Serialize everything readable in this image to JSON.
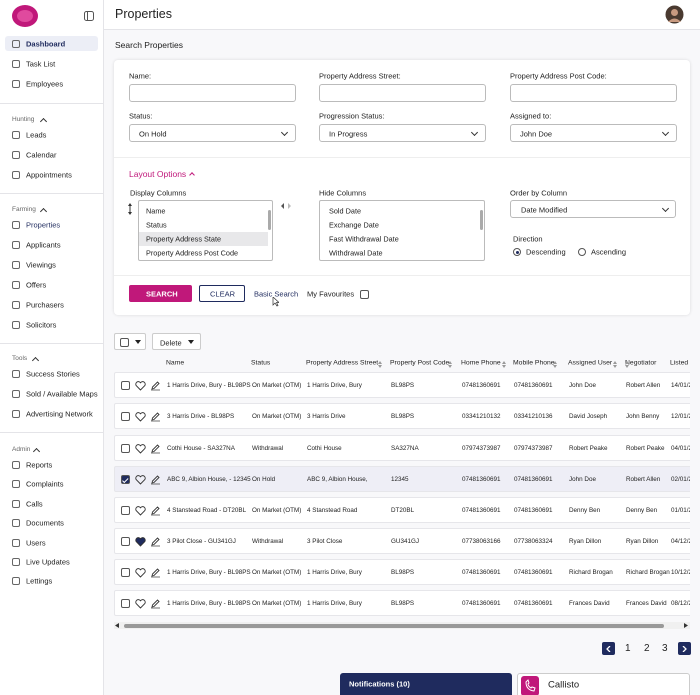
{
  "sidebar": {
    "items": [
      "Dashboard",
      "Task List",
      "Employees"
    ],
    "sections": [
      {
        "title": "Hunting",
        "items": [
          "Leads",
          "Calendar",
          "Appointments"
        ]
      },
      {
        "title": "Farming",
        "items": [
          "Properties",
          "Applicants",
          "Viewings",
          "Offers",
          "Purchasers",
          "Solicitors"
        ]
      },
      {
        "title": "Tools",
        "items": [
          "Success Stories",
          "Sold / Available Maps",
          "Advertising Network"
        ]
      },
      {
        "title": "Admin",
        "items": [
          "Reports",
          "Complaints",
          "Calls",
          "Documents",
          "Users",
          "Live Updates",
          "Lettings"
        ]
      }
    ]
  },
  "header": {
    "title": "Properties"
  },
  "search": {
    "title": "Search Properties",
    "fields": [
      {
        "label": "Name:"
      },
      {
        "label": "Property Address Street:"
      },
      {
        "label": "Property Address Post Code:"
      },
      {
        "label": "Status:",
        "value": "On Hold"
      },
      {
        "label": "Progression Status:",
        "value": "In Progress"
      },
      {
        "label": "Assigned to:",
        "value": "John Doe"
      }
    ]
  },
  "layout": {
    "title": "Layout Options",
    "display_label": "Display Columns",
    "display": [
      "Name",
      "Status",
      "Property Address State",
      "Property Address Post Code"
    ],
    "hide_label": "Hide Columns",
    "hide": [
      "Sold Date",
      "Exchange Date",
      "Fast Withdrawal Date",
      "Withdrawal Date"
    ],
    "order_label": "Order by Column",
    "order_value": "Date Modified",
    "direction_label": "Direction",
    "directions": [
      "Descending",
      "Ascending"
    ]
  },
  "buttons": {
    "search": "SEARCH",
    "clear": "CLEAR",
    "basic": "Basic Search",
    "favourites": "My Favourites"
  },
  "table": {
    "action": "Delete",
    "columns": [
      "Name",
      "Status",
      "Property Address Street",
      "Property Post Code",
      "Home Phone",
      "Mobile Phone",
      "Assigned User",
      "Negotiator",
      "Listed"
    ],
    "rows": [
      [
        "1 Harris Drive, Bury - BL98PS",
        "On Market (OTM)",
        "1 Harris Drive, Bury",
        "BL98PS",
        "07481360691",
        "07481360691",
        "John Doe",
        "Robert Allen",
        "14/01/2"
      ],
      [
        "3 Harris Drive - BL98PS",
        "On Market (OTM)",
        "3 Harris Drive",
        "BL98PS",
        "03341210132",
        "03341210136",
        "David Joseph",
        "John Benny",
        "12/01/2"
      ],
      [
        "Cothi House - SA327NA",
        "Withdrawal",
        "Cothi House",
        "SA327NA",
        "07974373987",
        "07974373987",
        "Robert Peake",
        "Robert Peake",
        "04/01/2"
      ],
      [
        "ABC 9, Albion House, - 12345",
        "On Hold",
        "ABC 9, Albion House,",
        "12345",
        "07481360691",
        "07481360691",
        "John Doe",
        "Robert Allen",
        "02/01/2"
      ],
      [
        "4 Stanstead Road - DT20BL",
        "On Market (OTM)",
        "4 Stanstead Road",
        "DT20BL",
        "07481360691",
        "07481360691",
        "Denny Ben",
        "Denny Ben",
        "01/01/2"
      ],
      [
        "3 Pilot Close - GU341GJ",
        "Withdrawal",
        "3 Pilot Close",
        "GU341GJ",
        "07738063166",
        "07738063324",
        "Ryan Dillon",
        "Ryan Dillon",
        "04/12/2"
      ],
      [
        "1 Harris Drive, Bury - BL98PS",
        "On Market (OTM)",
        "1 Harris Drive, Bury",
        "BL98PS",
        "07481360691",
        "07481360691",
        "Richard Brogan",
        "Richard Brogan",
        "10/12/2"
      ],
      [
        "1 Harris Drive, Bury - BL98PS",
        "On Market (OTM)",
        "1 Harris Drive, Bury",
        "BL98PS",
        "07481360691",
        "07481360691",
        "Frances David",
        "Frances David",
        "08/12/2"
      ]
    ]
  },
  "pagination": [
    "1",
    "2",
    "3"
  ],
  "footer": {
    "notifications": "Notifications (10)",
    "callisto": "Callisto"
  }
}
